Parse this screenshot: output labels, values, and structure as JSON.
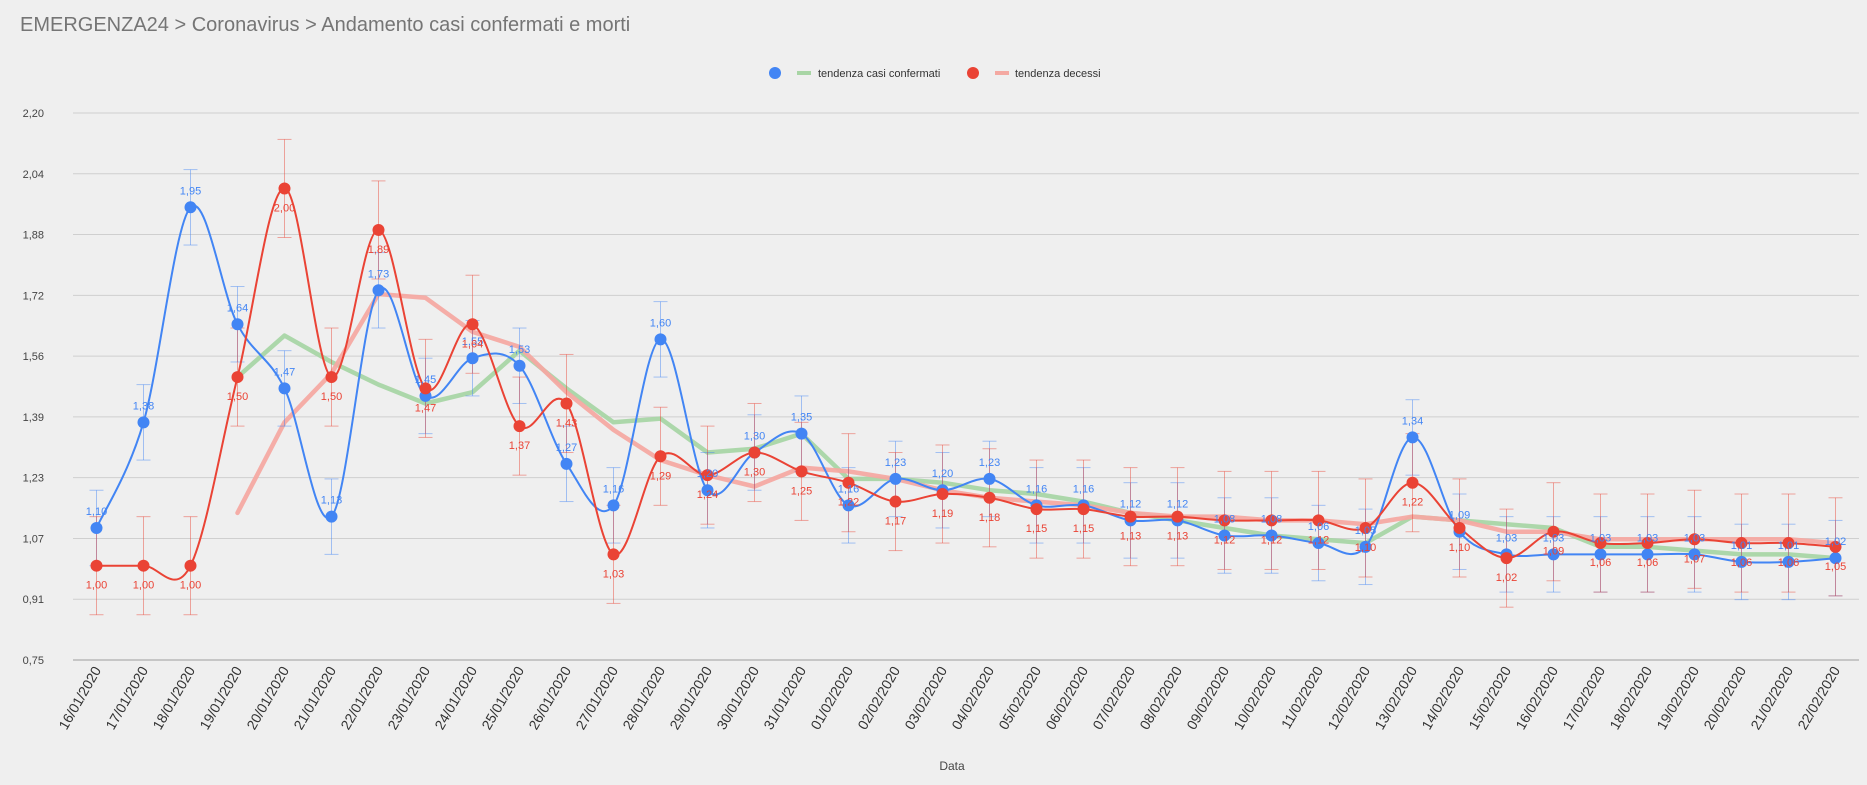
{
  "breadcrumb": "EMERGENZA24 > Coronavirus > Andamento casi confermati e morti",
  "chart_data": {
    "type": "line",
    "xlabel": "Data",
    "ylabel": "",
    "ylim": [
      0.75,
      2.2
    ],
    "yticks": [
      "0,75",
      "0,91",
      "1,07",
      "1,23",
      "1,39",
      "1,56",
      "1,72",
      "1,88",
      "2,04",
      "2,20"
    ],
    "grid": true,
    "legend_position": "top-center",
    "categories": [
      "16/01/2020",
      "17/01/2020",
      "18/01/2020",
      "19/01/2020",
      "20/01/2020",
      "21/01/2020",
      "22/01/2020",
      "23/01/2020",
      "24/01/2020",
      "25/01/2020",
      "26/01/2020",
      "27/01/2020",
      "28/01/2020",
      "29/01/2020",
      "30/01/2020",
      "31/01/2020",
      "01/02/2020",
      "02/02/2020",
      "03/02/2020",
      "04/02/2020",
      "05/02/2020",
      "06/02/2020",
      "07/02/2020",
      "08/02/2020",
      "09/02/2020",
      "10/02/2020",
      "11/02/2020",
      "12/02/2020",
      "13/02/2020",
      "14/02/2020",
      "15/02/2020",
      "16/02/2020",
      "17/02/2020",
      "18/02/2020",
      "19/02/2020",
      "20/02/2020",
      "21/02/2020",
      "22/02/2020"
    ],
    "colors": {
      "confirmed": "#4285f4",
      "deaths": "#ea4335",
      "confirmed_trend": "#a8d5a5",
      "deaths_trend": "#f4a9a2",
      "grid": "#cfcfcf",
      "axis_text": "#444444"
    },
    "series": [
      {
        "key": "confirmed",
        "values": [
          1.1,
          1.38,
          1.95,
          1.64,
          1.47,
          1.13,
          1.73,
          1.45,
          1.55,
          1.53,
          1.27,
          1.16,
          1.6,
          1.2,
          1.3,
          1.35,
          1.16,
          1.23,
          1.2,
          1.23,
          1.16,
          1.16,
          1.12,
          1.12,
          1.08,
          1.08,
          1.06,
          1.05,
          1.34,
          1.09,
          1.03,
          1.03,
          1.03,
          1.03,
          1.03,
          1.01,
          1.01,
          1.02
        ],
        "labels": [
          "1,10",
          "1,38",
          "1,95",
          "1,64",
          "1,47",
          "1,13",
          "1,73",
          "1,45",
          "1,55",
          "1,53",
          "1,27",
          "1,16",
          "1,60",
          "1,20",
          "1,30",
          "1,35",
          "1,16",
          "1,23",
          "1,20",
          "1,23",
          "1,16",
          "1,16",
          "1,12",
          "1,12",
          "1,08",
          "1,08",
          "1,06",
          "1,05",
          "1,34",
          "1,09",
          "1,03",
          "1,03",
          "1,03",
          "1,03",
          "1,03",
          "1,01",
          "1,01",
          "1,02"
        ],
        "error": 0.1
      },
      {
        "key": "deaths",
        "values": [
          1.0,
          1.0,
          1.0,
          1.5,
          2.0,
          1.5,
          1.89,
          1.47,
          1.64,
          1.37,
          1.43,
          1.03,
          1.29,
          1.24,
          1.3,
          1.25,
          1.22,
          1.17,
          1.19,
          1.18,
          1.15,
          1.15,
          1.13,
          1.13,
          1.12,
          1.12,
          1.12,
          1.1,
          1.22,
          1.1,
          1.02,
          1.09,
          1.06,
          1.06,
          1.07,
          1.06,
          1.06,
          1.05
        ],
        "labels": [
          "1,00",
          "1,00",
          "1,00",
          "1,50",
          "2,00",
          "1,50",
          "1,89",
          "1,47",
          "1,64",
          "1,37",
          "1,43",
          "1,03",
          "1,29",
          "1,24",
          "1,30",
          "1,25",
          "1,22",
          "1,17",
          "1,19",
          "1,18",
          "1,15",
          "1,15",
          "1,13",
          "1,13",
          "1,12",
          "1,12",
          "1,12",
          "1,10",
          "1,22",
          "1,10",
          "1,02",
          "1,09",
          "1,06",
          "1,06",
          "1,07",
          "1,06",
          "1,06",
          "1,05"
        ],
        "error": 0.13
      },
      {
        "key": "confirmed_trend",
        "name": "tendenza casi confermati",
        "values": [
          null,
          null,
          null,
          1.5,
          1.61,
          1.54,
          1.48,
          1.43,
          1.46,
          1.57,
          1.47,
          1.38,
          1.39,
          1.3,
          1.31,
          1.35,
          1.23,
          1.23,
          1.22,
          1.2,
          1.19,
          1.17,
          1.14,
          1.12,
          1.1,
          1.08,
          1.07,
          1.06,
          1.13,
          1.12,
          1.11,
          1.1,
          1.05,
          1.05,
          1.04,
          1.03,
          1.03,
          1.02
        ]
      },
      {
        "key": "deaths_trend",
        "name": "tendenza decessi",
        "values": [
          null,
          null,
          null,
          1.14,
          1.38,
          1.51,
          1.72,
          1.71,
          1.62,
          1.58,
          1.46,
          1.36,
          1.28,
          1.24,
          1.21,
          1.26,
          1.25,
          1.23,
          1.2,
          1.18,
          1.17,
          1.16,
          1.14,
          1.13,
          1.13,
          1.12,
          1.12,
          1.11,
          1.13,
          1.12,
          1.09,
          1.09,
          1.07,
          1.07,
          1.07,
          1.07,
          1.07,
          1.06
        ]
      }
    ]
  }
}
